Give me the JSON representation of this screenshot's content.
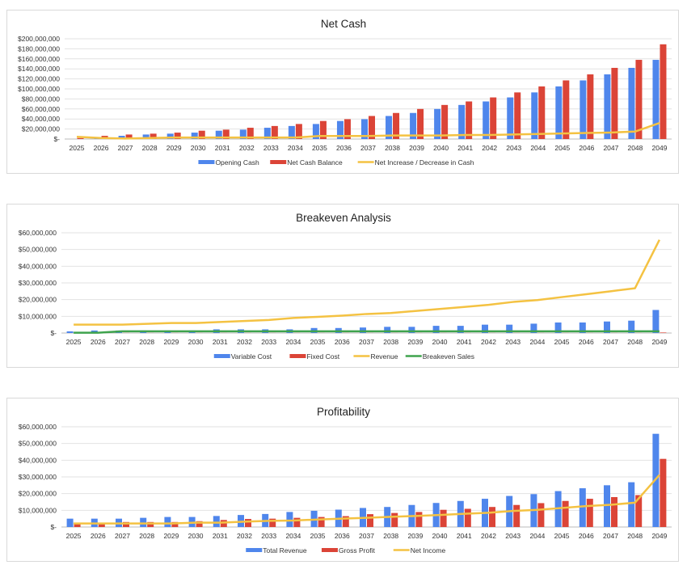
{
  "colors": {
    "blue": "#4f86ec",
    "red": "#db4437",
    "yellow": "#f4c242",
    "green": "#3fa34d",
    "grid": "#e2e2e2"
  },
  "chart_data": [
    {
      "type": "bar+line",
      "title": "Net Cash",
      "categories": [
        "2025",
        "2026",
        "2027",
        "2028",
        "2029",
        "2030",
        "2031",
        "2032",
        "2033",
        "2034",
        "2035",
        "2036",
        "2037",
        "2038",
        "2039",
        "2040",
        "2041",
        "2042",
        "2043",
        "2044",
        "2045",
        "2046",
        "2047",
        "2048",
        "2049"
      ],
      "ylim": [
        0,
        200000000
      ],
      "yticks": [
        0,
        20000000,
        40000000,
        60000000,
        80000000,
        100000000,
        120000000,
        140000000,
        160000000,
        180000000,
        200000000
      ],
      "ytick_labels": [
        "$-",
        "$20,000,000",
        "$40,000,000",
        "$60,000,000",
        "$80,000,000",
        "$100,000,000",
        "$120,000,000",
        "$140,000,000",
        "$160,000,000",
        "$180,000,000",
        "$200,000,000"
      ],
      "grid": true,
      "legend": "bottom",
      "series": [
        {
          "name": "Opening Cash",
          "kind": "bar",
          "color": "blue",
          "values": [
            0,
            4000000,
            6400000,
            9000000,
            10700000,
            12800000,
            16600000,
            18700000,
            22500000,
            26000000,
            30000000,
            36000000,
            39600000,
            46000000,
            52000000,
            60000000,
            68000000,
            75000000,
            83000000,
            93000000,
            105000000,
            117000000,
            129000000,
            142000000,
            158000000
          ]
        },
        {
          "name": "Net Cash Balance",
          "kind": "bar",
          "color": "red",
          "values": [
            2000000,
            6400000,
            9000000,
            10700000,
            12800000,
            16600000,
            18700000,
            22500000,
            26000000,
            30000000,
            36000000,
            39600000,
            46000000,
            52000000,
            60000000,
            68000000,
            75000000,
            83000000,
            93000000,
            105000000,
            117000000,
            129000000,
            142000000,
            158000000,
            189000000
          ]
        },
        {
          "name": "Net Increase / Decrease in Cash",
          "kind": "line",
          "color": "yellow",
          "values": [
            4500000,
            2000000,
            1000000,
            2000000,
            3000000,
            3000000,
            3000000,
            3000000,
            3000000,
            3000000,
            6000000,
            6000000,
            6000000,
            7000000,
            7000000,
            7000000,
            8000000,
            8000000,
            9000000,
            10000000,
            11000000,
            12000000,
            13000000,
            15000000,
            32000000
          ]
        }
      ]
    },
    {
      "type": "bar+line",
      "title": "Breakeven Analysis",
      "categories": [
        "2025",
        "2026",
        "2027",
        "2028",
        "2029",
        "2030",
        "2031",
        "2032",
        "2033",
        "2034",
        "2035",
        "2036",
        "2037",
        "2038",
        "2039",
        "2040",
        "2041",
        "2042",
        "2043",
        "2044",
        "2045",
        "2046",
        "2047",
        "2048",
        "2049"
      ],
      "ylim": [
        0,
        60000000
      ],
      "yticks": [
        0,
        10000000,
        20000000,
        30000000,
        40000000,
        50000000,
        60000000
      ],
      "ytick_labels": [
        "$-",
        "$10,000,000",
        "$20,000,000",
        "$30,000,000",
        "$40,000,000",
        "$50,000,000",
        "$60,000,000"
      ],
      "grid": true,
      "legend": "bottom",
      "series": [
        {
          "name": "Variable Cost",
          "kind": "bar",
          "color": "blue",
          "values": [
            1000000,
            1500000,
            1500000,
            1500000,
            1500000,
            1500000,
            2200000,
            2200000,
            2200000,
            2200000,
            3000000,
            3000000,
            3300000,
            3700000,
            3700000,
            4300000,
            4300000,
            5000000,
            5000000,
            5600000,
            6300000,
            6300000,
            6900000,
            7400000,
            13800000
          ]
        },
        {
          "name": "Fixed Cost",
          "kind": "bar",
          "color": "red",
          "values": [
            50000,
            50000,
            50000,
            50000,
            50000,
            50000,
            50000,
            50000,
            50000,
            50000,
            50000,
            50000,
            50000,
            50000,
            50000,
            50000,
            50000,
            50000,
            50000,
            50000,
            50000,
            50000,
            50000,
            50000,
            300000
          ]
        },
        {
          "name": "Revenue",
          "kind": "line",
          "color": "yellow",
          "values": [
            5000000,
            5000000,
            5000000,
            5500000,
            6000000,
            6000000,
            6600000,
            7200000,
            7800000,
            9000000,
            9700000,
            10400000,
            11400000,
            12000000,
            13200000,
            14400000,
            15600000,
            16900000,
            18600000,
            19700000,
            21500000,
            23200000,
            25000000,
            26800000,
            55800000
          ]
        },
        {
          "name": "Breakeven Sales",
          "kind": "line",
          "color": "green",
          "values": [
            200000,
            200000,
            1000000,
            1000000,
            1000000,
            1000000,
            1000000,
            1000000,
            1000000,
            1000000,
            1000000,
            1000000,
            1000000,
            1000000,
            1000000,
            1000000,
            1000000,
            1000000,
            1000000,
            1000000,
            1000000,
            1000000,
            1000000,
            1000000,
            1000000
          ]
        }
      ]
    },
    {
      "type": "bar+line",
      "title": "Profitability",
      "categories": [
        "2025",
        "2026",
        "2027",
        "2028",
        "2029",
        "2030",
        "2031",
        "2032",
        "2033",
        "2034",
        "2035",
        "2036",
        "2037",
        "2038",
        "2039",
        "2040",
        "2041",
        "2042",
        "2043",
        "2044",
        "2045",
        "2046",
        "2047",
        "2048",
        "2049"
      ],
      "ylim": [
        0,
        60000000
      ],
      "yticks": [
        0,
        10000000,
        20000000,
        30000000,
        40000000,
        50000000,
        60000000
      ],
      "ytick_labels": [
        "$-",
        "$10,000,000",
        "$20,000,000",
        "$30,000,000",
        "$40,000,000",
        "$50,000,000",
        "$60,000,000"
      ],
      "grid": true,
      "legend": "bottom",
      "series": [
        {
          "name": "Total Revenue",
          "kind": "bar",
          "color": "blue",
          "values": [
            5000000,
            5000000,
            5000000,
            5500000,
            6000000,
            6000000,
            6600000,
            7200000,
            7800000,
            9000000,
            9700000,
            10400000,
            11400000,
            12000000,
            13200000,
            14400000,
            15600000,
            16900000,
            18600000,
            19700000,
            21500000,
            23200000,
            25000000,
            26800000,
            55800000
          ]
        },
        {
          "name": "Gross Profit",
          "kind": "bar",
          "color": "red",
          "values": [
            1800000,
            2000000,
            3000000,
            3000000,
            3000000,
            3500000,
            4200000,
            4800000,
            5000000,
            5500000,
            6000000,
            6500000,
            7700000,
            8400000,
            9000000,
            10300000,
            10900000,
            12000000,
            13200000,
            14300000,
            15600000,
            16900000,
            17900000,
            19100000,
            40800000
          ]
        },
        {
          "name": "Net Income",
          "kind": "line",
          "color": "yellow",
          "values": [
            2100000,
            2100000,
            2100000,
            2100000,
            2100000,
            2600000,
            2600000,
            3200000,
            3700000,
            3900000,
            4500000,
            5000000,
            5500000,
            6100000,
            6600000,
            7200000,
            7900000,
            8500000,
            9600000,
            10300000,
            11400000,
            12500000,
            13300000,
            14600000,
            31200000
          ]
        }
      ]
    }
  ]
}
